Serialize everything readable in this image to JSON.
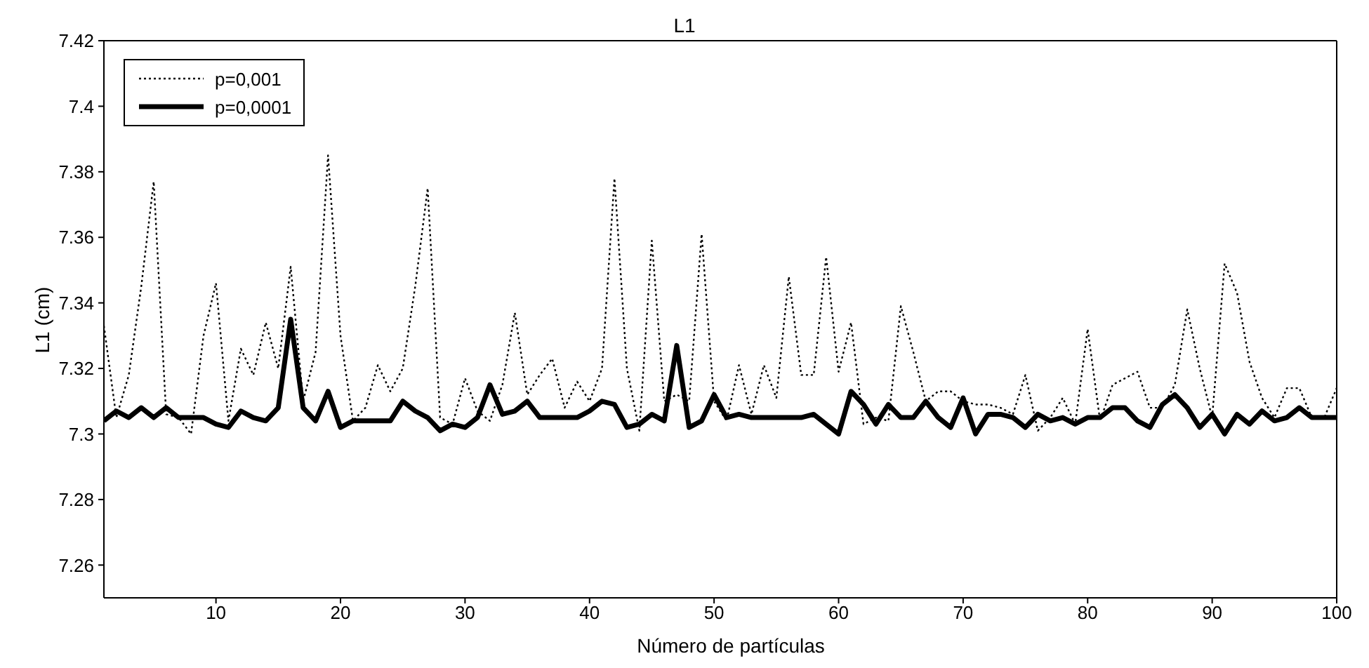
{
  "chart_data": {
    "type": "line",
    "title": "L1",
    "xlabel": "Número de partículas",
    "ylabel": "L1 (cm)",
    "x": [
      1,
      2,
      3,
      4,
      5,
      6,
      7,
      8,
      9,
      10,
      11,
      12,
      13,
      14,
      15,
      16,
      17,
      18,
      19,
      20,
      21,
      22,
      23,
      24,
      25,
      26,
      27,
      28,
      29,
      30,
      31,
      32,
      33,
      34,
      35,
      36,
      37,
      38,
      39,
      40,
      41,
      42,
      43,
      44,
      45,
      46,
      47,
      48,
      49,
      50,
      51,
      52,
      53,
      54,
      55,
      56,
      57,
      58,
      59,
      60,
      61,
      62,
      63,
      64,
      65,
      66,
      67,
      68,
      69,
      70,
      71,
      72,
      73,
      74,
      75,
      76,
      77,
      78,
      79,
      80,
      81,
      82,
      83,
      84,
      85,
      86,
      87,
      88,
      89,
      90,
      91,
      92,
      93,
      94,
      95,
      96,
      97,
      98,
      99,
      100
    ],
    "series": [
      {
        "name": "p=0,001",
        "color": "#000000",
        "line_style": "dotted",
        "values": [
          7.333,
          7.305,
          7.318,
          7.345,
          7.377,
          7.306,
          7.305,
          7.3,
          7.33,
          7.346,
          7.304,
          7.326,
          7.318,
          7.334,
          7.32,
          7.351,
          7.31,
          7.325,
          7.385,
          7.33,
          7.304,
          7.308,
          7.321,
          7.313,
          7.32,
          7.345,
          7.375,
          7.305,
          7.303,
          7.317,
          7.307,
          7.304,
          7.315,
          7.337,
          7.312,
          7.318,
          7.323,
          7.308,
          7.316,
          7.31,
          7.32,
          7.378,
          7.32,
          7.301,
          7.359,
          7.31,
          7.312,
          7.31,
          7.361,
          7.31,
          7.304,
          7.321,
          7.306,
          7.321,
          7.311,
          7.348,
          7.318,
          7.318,
          7.354,
          7.319,
          7.334,
          7.303,
          7.305,
          7.304,
          7.339,
          7.325,
          7.31,
          7.313,
          7.313,
          7.31,
          7.309,
          7.309,
          7.308,
          7.306,
          7.318,
          7.301,
          7.305,
          7.311,
          7.303,
          7.332,
          7.304,
          7.315,
          7.317,
          7.319,
          7.308,
          7.308,
          7.315,
          7.338,
          7.32,
          7.305,
          7.352,
          7.343,
          7.322,
          7.311,
          7.305,
          7.314,
          7.314,
          7.305,
          7.305,
          7.314
        ]
      },
      {
        "name": "p=0,0001",
        "color": "#000000",
        "line_style": "solid",
        "values": [
          7.304,
          7.307,
          7.305,
          7.308,
          7.305,
          7.308,
          7.305,
          7.305,
          7.305,
          7.303,
          7.302,
          7.307,
          7.305,
          7.304,
          7.308,
          7.335,
          7.308,
          7.304,
          7.313,
          7.302,
          7.304,
          7.304,
          7.304,
          7.304,
          7.31,
          7.307,
          7.305,
          7.301,
          7.303,
          7.302,
          7.305,
          7.315,
          7.306,
          7.307,
          7.31,
          7.305,
          7.305,
          7.305,
          7.305,
          7.307,
          7.31,
          7.309,
          7.302,
          7.303,
          7.306,
          7.304,
          7.327,
          7.302,
          7.304,
          7.312,
          7.305,
          7.306,
          7.305,
          7.305,
          7.305,
          7.305,
          7.305,
          7.306,
          7.303,
          7.3,
          7.313,
          7.309,
          7.303,
          7.309,
          7.305,
          7.305,
          7.31,
          7.305,
          7.302,
          7.311,
          7.3,
          7.306,
          7.306,
          7.305,
          7.302,
          7.306,
          7.304,
          7.305,
          7.303,
          7.305,
          7.305,
          7.308,
          7.308,
          7.304,
          7.302,
          7.309,
          7.312,
          7.308,
          7.302,
          7.306,
          7.3,
          7.306,
          7.303,
          7.307,
          7.304,
          7.305,
          7.308,
          7.305,
          7.305,
          7.305
        ]
      }
    ],
    "xlim": [
      1,
      100
    ],
    "xticks": [
      10,
      20,
      30,
      40,
      50,
      60,
      70,
      80,
      90,
      100
    ],
    "ylim": [
      7.25,
      7.42
    ],
    "yticks": [
      7.26,
      7.28,
      7.3,
      7.32,
      7.34,
      7.36,
      7.38,
      7.4,
      7.42
    ],
    "grid": false,
    "legend": "top left",
    "marker": "none"
  }
}
